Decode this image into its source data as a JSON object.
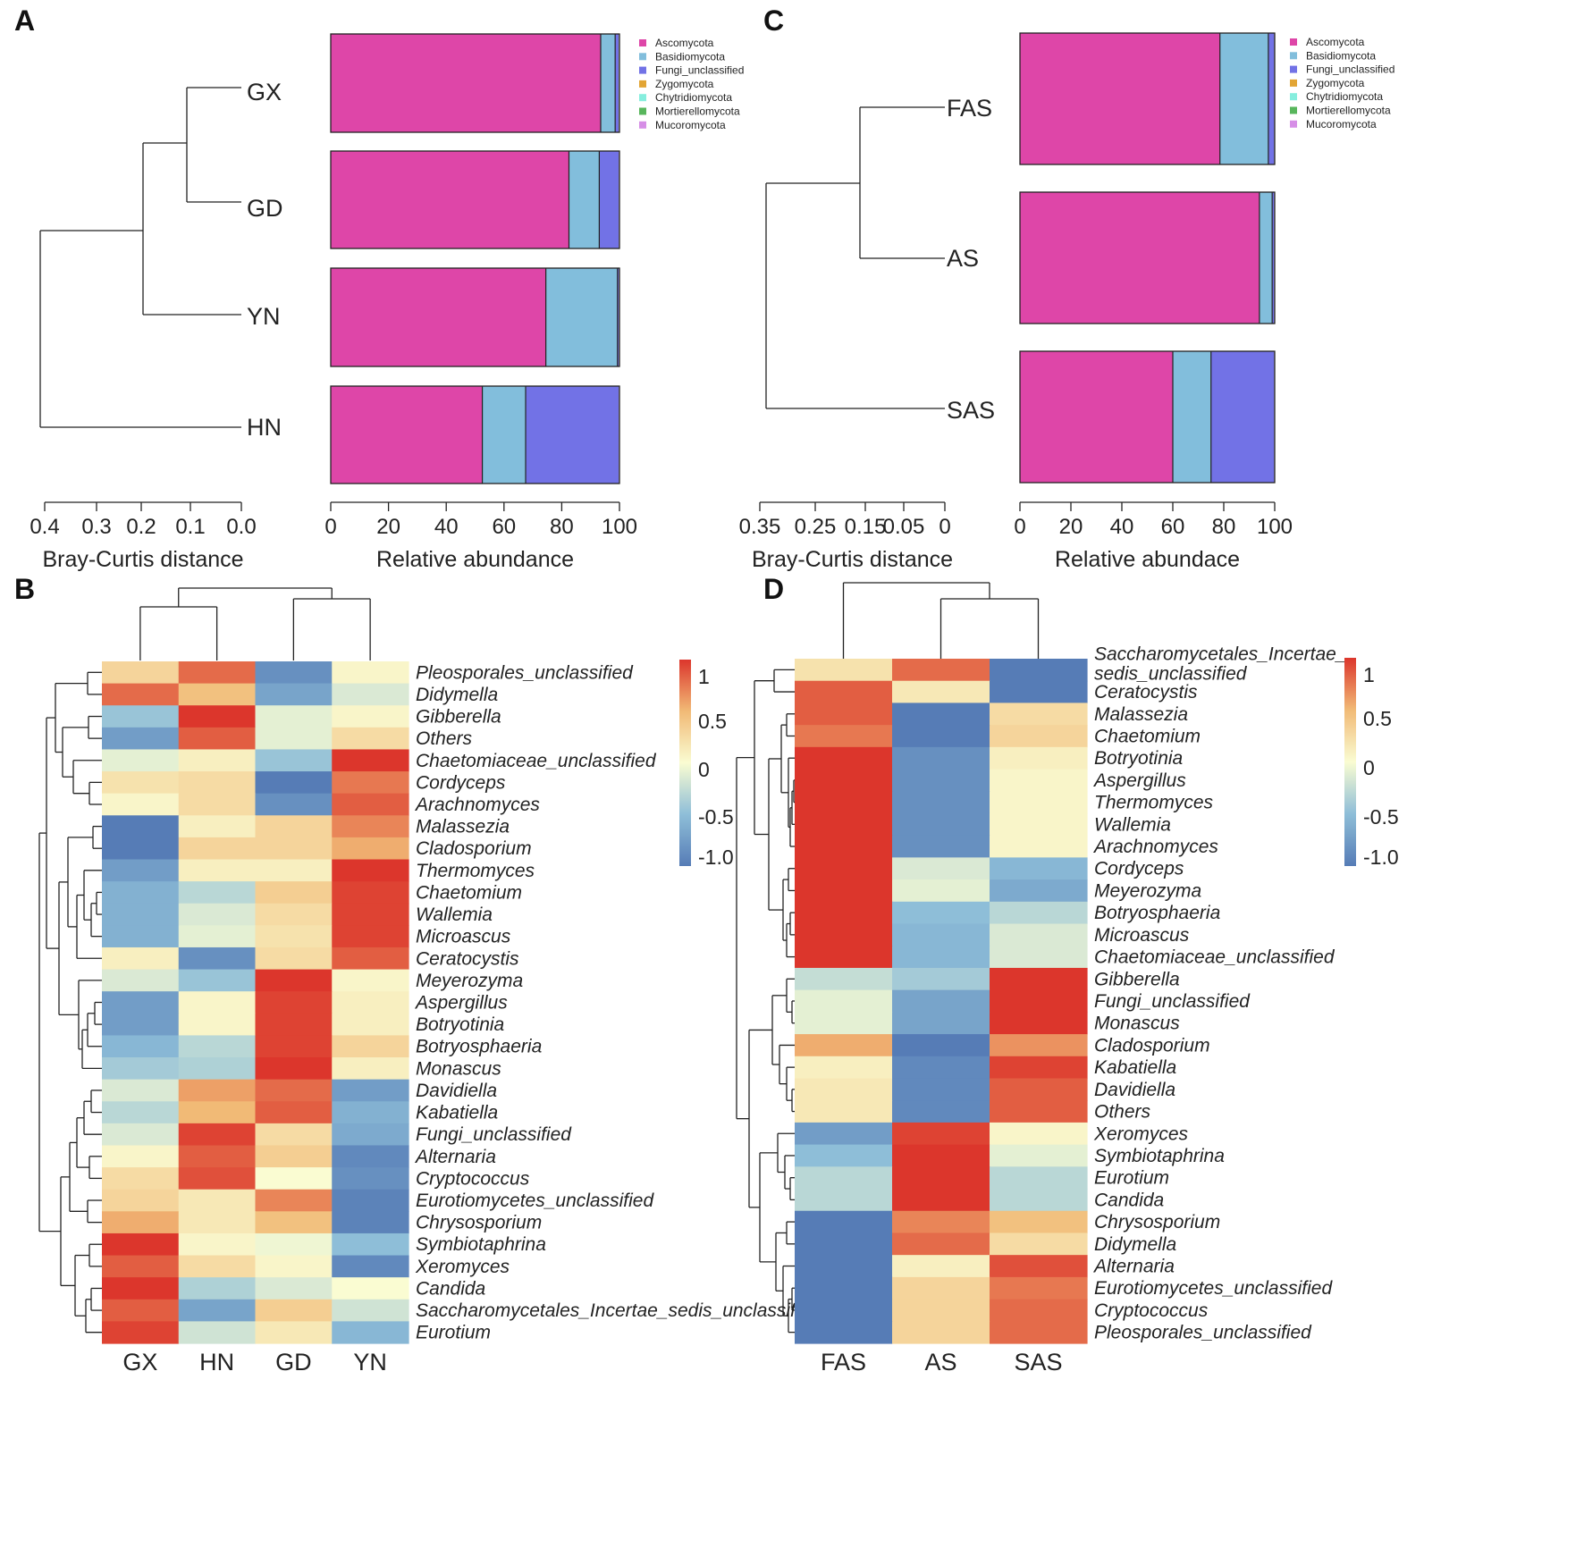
{
  "panels": {
    "A": {
      "label": "A",
      "xlabel_distance": "Bray-Curtis distance",
      "distance_ticks": [
        0.4,
        0.3,
        0.2,
        0.1,
        0.0
      ],
      "distance_tick_labels": [
        "0.4",
        "0.3",
        "0.2",
        "0.1",
        "0.0"
      ],
      "samples": [
        "GX",
        "GD",
        "YN",
        "HN"
      ],
      "dendrogram": [
        {
          "left": "GX",
          "right": "GD",
          "height": 0.12
        },
        {
          "left": "GX+GD",
          "right": "YN",
          "height": 0.22
        },
        {
          "left": "GX+GD+YN",
          "right": "HN",
          "height": 0.45
        }
      ],
      "xlabel_abundance": "Relative abundance",
      "abundance_ticks": [
        0,
        20,
        40,
        60,
        80,
        100
      ],
      "legend": [
        "Ascomycota",
        "Basidiomycota",
        "Fungi_unclassified",
        "Zygomycota",
        "Chytridiomycota",
        "Mortierellomycota",
        "Mucoromycota"
      ]
    },
    "B": {
      "label": "B",
      "colorbar_ticks": [
        "1",
        "0.5",
        "0",
        "-0.5",
        "-1.0"
      ]
    },
    "C": {
      "label": "C",
      "xlabel_distance": "Bray-Curtis distance",
      "distance_tick_labels": [
        "0.35",
        "0.25",
        "0.15",
        "0.05",
        "0"
      ],
      "samples": [
        "FAS",
        "AS",
        "SAS"
      ],
      "dendrogram": [
        {
          "left": "FAS",
          "right": "AS",
          "height": 0.19
        },
        {
          "left": "FAS+AS",
          "right": "SAS",
          "height": 0.37
        }
      ],
      "xlabel_abundance": "Relative abundace",
      "abundance_ticks": [
        0,
        20,
        40,
        60,
        80,
        100
      ],
      "legend": [
        "Ascomycota",
        "Basidiomycota",
        "Fungi_unclassified",
        "Zygomycota",
        "Chytridiomycota",
        "Mortierellomycota",
        "Mucoromycota"
      ]
    },
    "D": {
      "label": "D",
      "colorbar_ticks": [
        "1",
        "0.5",
        "0",
        "-0.5",
        "-1.0"
      ]
    }
  },
  "chart_data": [
    {
      "type": "bar",
      "panel": "A",
      "orientation": "horizontal-stacked",
      "title": "",
      "xlabel": "Relative abundance",
      "xlim": [
        0,
        100
      ],
      "categories": [
        "GX",
        "GD",
        "YN",
        "HN"
      ],
      "series": [
        {
          "name": "Ascomycota",
          "color": "#de46a8",
          "values": [
            93.5,
            82.5,
            74.5,
            52.5
          ]
        },
        {
          "name": "Basidiomycota",
          "color": "#82bedc",
          "values": [
            5.0,
            10.5,
            24.8,
            15.0
          ]
        },
        {
          "name": "Fungi_unclassified",
          "color": "#7272e6",
          "values": [
            1.2,
            6.8,
            0.5,
            32.3
          ]
        },
        {
          "name": "Zygomycota",
          "color": "#e2a535",
          "values": [
            0.1,
            0.1,
            0.1,
            0.1
          ]
        },
        {
          "name": "Chytridiomycota",
          "color": "#86eede",
          "values": [
            0.1,
            0.05,
            0.05,
            0.05
          ]
        },
        {
          "name": "Mortierellomycota",
          "color": "#58b65c",
          "values": [
            0.05,
            0.05,
            0.05,
            0.05
          ]
        },
        {
          "name": "Mucoromycota",
          "color": "#d68ee6",
          "values": [
            0.05,
            0.05,
            0.05,
            0.05
          ]
        }
      ]
    },
    {
      "type": "heatmap",
      "panel": "B",
      "columns": [
        "GX",
        "HN",
        "GD",
        "YN"
      ],
      "column_dendrogram": [
        [
          "GX",
          "HN"
        ],
        [
          "GD",
          "YN"
        ],
        [
          "GX+HN",
          "GD+YN"
        ]
      ],
      "vmin": -1.0,
      "vmax": 1.0,
      "rows": [
        {
          "name": "Pleosporales_unclassified",
          "values": [
            0.3,
            0.8,
            -0.85,
            0.05
          ]
        },
        {
          "name": "Didymella",
          "values": [
            0.8,
            0.45,
            -0.7,
            -0.15
          ]
        },
        {
          "name": "Gibberella",
          "values": [
            -0.45,
            1.0,
            -0.1,
            0.05
          ]
        },
        {
          "name": "Others",
          "values": [
            -0.75,
            0.85,
            -0.1,
            0.25
          ]
        },
        {
          "name": "Chaetomiaceae_unclassified",
          "values": [
            -0.1,
            0.1,
            -0.45,
            1.0
          ]
        },
        {
          "name": "Cordyceps",
          "values": [
            0.2,
            0.25,
            -1.0,
            0.75
          ]
        },
        {
          "name": "Arachnomyces",
          "values": [
            0.05,
            0.25,
            -0.85,
            0.85
          ]
        },
        {
          "name": "Malassezia",
          "values": [
            -1.0,
            0.1,
            0.3,
            0.7
          ]
        },
        {
          "name": "Cladosporium",
          "values": [
            -1.0,
            0.3,
            0.3,
            0.55
          ]
        },
        {
          "name": "Thermomyces",
          "values": [
            -0.75,
            0.1,
            0.1,
            1.0
          ]
        },
        {
          "name": "Chaetomium",
          "values": [
            -0.6,
            -0.3,
            0.35,
            0.95
          ]
        },
        {
          "name": "Wallemia",
          "values": [
            -0.6,
            -0.15,
            0.25,
            0.95
          ]
        },
        {
          "name": "Microascus",
          "values": [
            -0.6,
            -0.1,
            0.2,
            0.95
          ]
        },
        {
          "name": "Ceratocystis",
          "values": [
            0.1,
            -0.85,
            0.25,
            0.85
          ]
        },
        {
          "name": "Meyerozyma",
          "values": [
            -0.15,
            -0.45,
            1.0,
            0.05
          ]
        },
        {
          "name": "Aspergillus",
          "values": [
            -0.75,
            0.05,
            0.95,
            0.1
          ]
        },
        {
          "name": "Botryotinia",
          "values": [
            -0.75,
            0.05,
            0.95,
            0.1
          ]
        },
        {
          "name": "Botryosphaeria",
          "values": [
            -0.55,
            -0.3,
            0.95,
            0.3
          ]
        },
        {
          "name": "Monascus",
          "values": [
            -0.4,
            -0.35,
            1.0,
            0.1
          ]
        },
        {
          "name": "Davidiella",
          "values": [
            -0.15,
            0.6,
            0.8,
            -0.75
          ]
        },
        {
          "name": "Kabatiella",
          "values": [
            -0.3,
            0.5,
            0.85,
            -0.6
          ]
        },
        {
          "name": "Fungi_unclassified",
          "values": [
            -0.15,
            0.95,
            0.25,
            -0.65
          ]
        },
        {
          "name": "Alternaria",
          "values": [
            0.05,
            0.85,
            0.35,
            -0.9
          ]
        },
        {
          "name": "Cryptococcus",
          "values": [
            0.25,
            0.9,
            0.0,
            -0.85
          ]
        },
        {
          "name": "Eurotiomycetes_unclassified",
          "values": [
            0.3,
            0.15,
            0.7,
            -0.95
          ]
        },
        {
          "name": "Chrysosporium",
          "values": [
            0.55,
            0.15,
            0.45,
            -0.95
          ]
        },
        {
          "name": "Symbiotaphrina",
          "values": [
            1.0,
            0.05,
            -0.05,
            -0.5
          ]
        },
        {
          "name": "Xeromyces",
          "values": [
            0.85,
            0.25,
            0.05,
            -0.9
          ]
        },
        {
          "name": "Candida",
          "values": [
            1.0,
            -0.35,
            -0.15,
            0.0
          ]
        },
        {
          "name": "Saccharomycetales_Incertae_sedis_unclassified",
          "values": [
            0.85,
            -0.7,
            0.35,
            -0.2
          ]
        },
        {
          "name": "Eurotium",
          "values": [
            0.95,
            -0.2,
            0.15,
            -0.55
          ]
        }
      ]
    },
    {
      "type": "bar",
      "panel": "C",
      "orientation": "horizontal-stacked",
      "title": "",
      "xlabel": "Relative abundace",
      "xlim": [
        0,
        100
      ],
      "categories": [
        "FAS",
        "AS",
        "SAS"
      ],
      "series": [
        {
          "name": "Ascomycota",
          "color": "#de46a8",
          "values": [
            78.5,
            94.0,
            60.0
          ]
        },
        {
          "name": "Basidiomycota",
          "color": "#82bedc",
          "values": [
            19.0,
            5.0,
            15.0
          ]
        },
        {
          "name": "Fungi_unclassified",
          "color": "#7272e6",
          "values": [
            2.3,
            0.8,
            24.8
          ]
        },
        {
          "name": "Zygomycota",
          "color": "#e2a535",
          "values": [
            0.1,
            0.1,
            0.1
          ]
        },
        {
          "name": "Chytridiomycota",
          "color": "#86eede",
          "values": [
            0.05,
            0.05,
            0.05
          ]
        },
        {
          "name": "Mortierellomycota",
          "color": "#58b65c",
          "values": [
            0.03,
            0.03,
            0.03
          ]
        },
        {
          "name": "Mucoromycota",
          "color": "#d68ee6",
          "values": [
            0.02,
            0.02,
            0.02
          ]
        }
      ]
    },
    {
      "type": "heatmap",
      "panel": "D",
      "columns": [
        "FAS",
        "AS",
        "SAS"
      ],
      "column_dendrogram": [
        [
          "AS",
          "SAS"
        ],
        [
          "FAS",
          "AS+SAS"
        ]
      ],
      "vmin": -1.0,
      "vmax": 1.0,
      "rows": [
        {
          "name": "Saccharomycetales_Incertae_sedis_unclassified",
          "label_lines": [
            "Saccharomycetales_Incertae_",
            "sedis_unclassified"
          ],
          "values": [
            0.2,
            0.8,
            -1.0
          ]
        },
        {
          "name": "Ceratocystis",
          "values": [
            0.85,
            0.15,
            -1.0
          ]
        },
        {
          "name": "Malassezia",
          "values": [
            0.85,
            -1.0,
            0.25
          ]
        },
        {
          "name": "Chaetomium",
          "values": [
            0.75,
            -1.0,
            0.3
          ]
        },
        {
          "name": "Botryotinia",
          "values": [
            1.0,
            -0.85,
            0.1
          ]
        },
        {
          "name": "Aspergillus",
          "values": [
            1.0,
            -0.85,
            0.05
          ]
        },
        {
          "name": "Thermomyces",
          "values": [
            1.0,
            -0.85,
            0.05
          ]
        },
        {
          "name": "Wallemia",
          "values": [
            1.0,
            -0.85,
            0.05
          ]
        },
        {
          "name": "Arachnomyces",
          "values": [
            1.0,
            -0.85,
            0.05
          ]
        },
        {
          "name": "Cordyceps",
          "values": [
            1.0,
            -0.15,
            -0.55
          ]
        },
        {
          "name": "Meyerozyma",
          "values": [
            1.0,
            -0.1,
            -0.65
          ]
        },
        {
          "name": "Botryosphaeria",
          "values": [
            1.0,
            -0.5,
            -0.3
          ]
        },
        {
          "name": "Microascus",
          "values": [
            1.0,
            -0.55,
            -0.15
          ]
        },
        {
          "name": "Chaetomiaceae_unclassified",
          "values": [
            1.0,
            -0.55,
            -0.15
          ]
        },
        {
          "name": "Gibberella",
          "values": [
            -0.25,
            -0.4,
            1.0
          ]
        },
        {
          "name": "Fungi_unclassified",
          "values": [
            -0.1,
            -0.7,
            1.0
          ]
        },
        {
          "name": "Monascus",
          "values": [
            -0.1,
            -0.7,
            1.0
          ]
        },
        {
          "name": "Cladosporium",
          "values": [
            0.55,
            -1.0,
            0.65
          ]
        },
        {
          "name": "Kabatiella",
          "values": [
            0.1,
            -0.9,
            0.95
          ]
        },
        {
          "name": "Davidiella",
          "values": [
            0.15,
            -0.9,
            0.85
          ]
        },
        {
          "name": "Others",
          "values": [
            0.15,
            -0.9,
            0.85
          ]
        },
        {
          "name": "Xeromyces",
          "values": [
            -0.75,
            0.95,
            0.05
          ]
        },
        {
          "name": "Symbiotaphrina",
          "values": [
            -0.5,
            1.0,
            -0.1
          ]
        },
        {
          "name": "Eurotium",
          "values": [
            -0.3,
            1.0,
            -0.3
          ]
        },
        {
          "name": "Candida",
          "values": [
            -0.3,
            1.0,
            -0.3
          ]
        },
        {
          "name": "Chrysosporium",
          "values": [
            -1.0,
            0.7,
            0.45
          ]
        },
        {
          "name": "Didymella",
          "values": [
            -1.0,
            0.8,
            0.25
          ]
        },
        {
          "name": "Alternaria",
          "values": [
            -1.0,
            0.1,
            0.9
          ]
        },
        {
          "name": "Eurotiomycetes_unclassified",
          "values": [
            -1.0,
            0.3,
            0.75
          ]
        },
        {
          "name": "Cryptococcus",
          "values": [
            -1.0,
            0.3,
            0.8
          ]
        },
        {
          "name": "Pleosporales_unclassified",
          "values": [
            -1.0,
            0.3,
            0.8
          ]
        }
      ]
    }
  ]
}
